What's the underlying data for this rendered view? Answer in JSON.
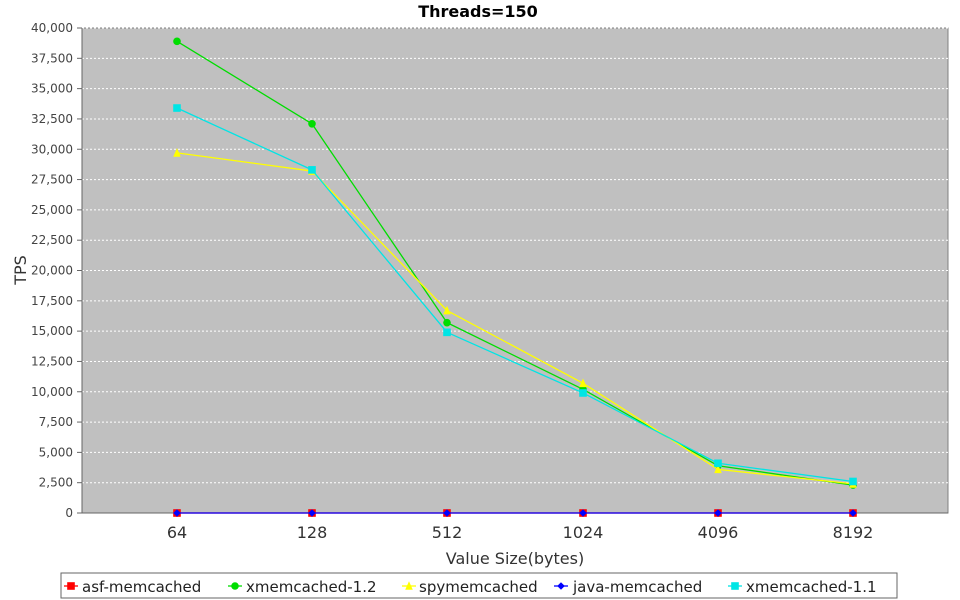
{
  "chart_data": {
    "type": "line",
    "title": "Threads=150",
    "xlabel": "Value Size(bytes)",
    "ylabel": "TPS",
    "categories": [
      "64",
      "128",
      "512",
      "1024",
      "4096",
      "8192"
    ],
    "ylim": [
      0,
      40000
    ],
    "yticks": [
      {
        "value": 0,
        "label": "0"
      },
      {
        "value": 2500,
        "label": "2,500"
      },
      {
        "value": 5000,
        "label": "5,000"
      },
      {
        "value": 7500,
        "label": "7,500"
      },
      {
        "value": 10000,
        "label": "10,000"
      },
      {
        "value": 12500,
        "label": "12,500"
      },
      {
        "value": 15000,
        "label": "15,000"
      },
      {
        "value": 17500,
        "label": "17,500"
      },
      {
        "value": 20000,
        "label": "20,000"
      },
      {
        "value": 22500,
        "label": "22,500"
      },
      {
        "value": 25000,
        "label": "25,000"
      },
      {
        "value": 27500,
        "label": "27,500"
      },
      {
        "value": 30000,
        "label": "30,000"
      },
      {
        "value": 32500,
        "label": "32,500"
      },
      {
        "value": 35000,
        "label": "35,000"
      },
      {
        "value": 37500,
        "label": "37,500"
      },
      {
        "value": 40000,
        "label": "40,000"
      }
    ],
    "grid": true,
    "legend_position": "bottom",
    "plot_background": "#c0c0c0",
    "series": [
      {
        "name": "asf-memcached",
        "color": "#ff0000",
        "marker": "square",
        "values": [
          0,
          0,
          0,
          0,
          0,
          0
        ]
      },
      {
        "name": "xmemcached-1.2",
        "color": "#00dd00",
        "marker": "circle",
        "values": [
          38900,
          32100,
          15700,
          10200,
          3900,
          2300
        ]
      },
      {
        "name": "spymemcached",
        "color": "#ffff00",
        "marker": "triangle",
        "values": [
          29700,
          28200,
          16700,
          10700,
          3600,
          2400
        ]
      },
      {
        "name": "java-memcached",
        "color": "#0000ff",
        "marker": "diamond",
        "values": [
          0,
          0,
          0,
          0,
          0,
          0
        ]
      },
      {
        "name": "xmemcached-1.1",
        "color": "#00e5e5",
        "marker": "square",
        "values": [
          33400,
          28300,
          14900,
          9900,
          4100,
          2600
        ]
      }
    ]
  }
}
